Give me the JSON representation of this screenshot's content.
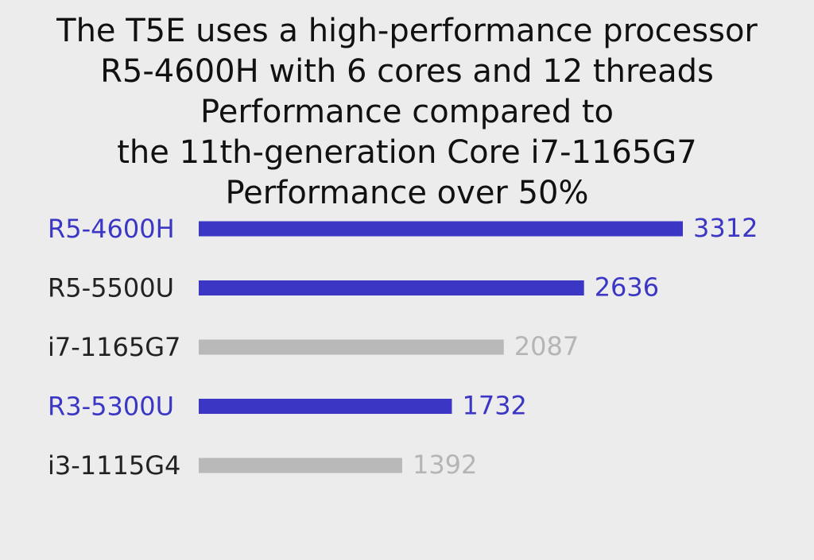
{
  "title_lines": [
    "The T5E uses a high-performance processor",
    "R5-4600H with 6 cores and 12 threads",
    "Performance compared to",
    "the 11th-generation Core i7-1165G7",
    "Performance over 50%"
  ],
  "colors": {
    "background": "#ececec",
    "highlight_bar": "#3b37c4",
    "highlight_label": "#3b37c4",
    "highlight_value": "#3b37c4",
    "neutral_bar": "#b9b9b9",
    "neutral_value": "#b5b5b5",
    "dark_label": "#222222"
  },
  "chart_data": {
    "type": "bar",
    "orientation": "horizontal",
    "categories": [
      "R5-4600H",
      "R5-5500U",
      "i7-1165G7",
      "R3-5300U",
      "i3-1115G4"
    ],
    "values": [
      3312,
      2636,
      2087,
      1732,
      1392
    ],
    "bar_colors": [
      "highlight",
      "highlight",
      "neutral",
      "highlight",
      "neutral"
    ],
    "label_colors": [
      "highlight",
      "dark",
      "dark",
      "highlight",
      "dark"
    ],
    "value_colors": [
      "highlight",
      "highlight",
      "neutral",
      "highlight",
      "neutral"
    ],
    "xlim": [
      0,
      3312
    ],
    "grid": false,
    "legend": "none"
  }
}
